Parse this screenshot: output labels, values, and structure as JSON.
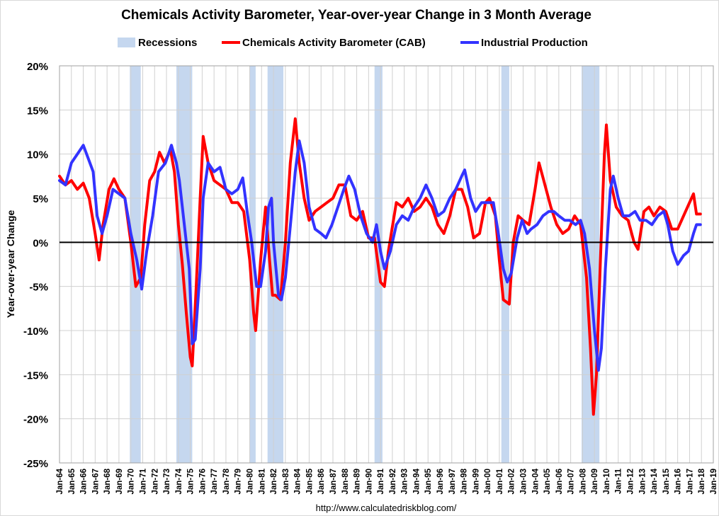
{
  "chart_data": {
    "type": "line",
    "title": "Chemicals Activity Barometer, Year-over-year Change in 3 Month Average",
    "ylabel": "Year-over-year Change",
    "xlabel": "",
    "source": "http://www.calculatedriskblog.com/",
    "ylim": [
      -25,
      20
    ],
    "yticks": [
      20,
      15,
      10,
      5,
      0,
      -5,
      -10,
      -15,
      -20,
      -25
    ],
    "ytick_labels": [
      "20%",
      "15%",
      "10%",
      "5%",
      "0%",
      "-5%",
      "-10%",
      "-15%",
      "-20%",
      "-25%"
    ],
    "xlim": [
      "1964-01",
      "2019-01"
    ],
    "xtick_labels": [
      "Jan-64",
      "Jan-65",
      "Jan-66",
      "Jan-67",
      "Jan-68",
      "Jan-69",
      "Jan-70",
      "Jan-71",
      "Jan-72",
      "Jan-73",
      "Jan-74",
      "Jan-75",
      "Jan-76",
      "Jan-77",
      "Jan-78",
      "Jan-79",
      "Jan-80",
      "Jan-81",
      "Jan-82",
      "Jan-83",
      "Jan-84",
      "Jan-85",
      "Jan-86",
      "Jan-87",
      "Jan-88",
      "Jan-89",
      "Jan-90",
      "Jan-91",
      "Jan-92",
      "Jan-93",
      "Jan-94",
      "Jan-95",
      "Jan-96",
      "Jan-97",
      "Jan-98",
      "Jan-99",
      "Jan-00",
      "Jan-01",
      "Jan-02",
      "Jan-03",
      "Jan-04",
      "Jan-05",
      "Jan-06",
      "Jan-07",
      "Jan-08",
      "Jan-09",
      "Jan-10",
      "Jan-11",
      "Jan-12",
      "Jan-13",
      "Jan-14",
      "Jan-15",
      "Jan-16",
      "Jan-17",
      "Jan-18",
      "Jan-19"
    ],
    "grid": true,
    "legend_placement": "top",
    "recessions": {
      "name": "Recessions",
      "color": "#c5d7ef",
      "periods": [
        [
          "1969-12",
          "1970-11"
        ],
        [
          "1973-11",
          "1975-03"
        ],
        [
          "1980-01",
          "1980-07"
        ],
        [
          "1981-07",
          "1982-11"
        ],
        [
          "1990-07",
          "1991-03"
        ],
        [
          "2001-03",
          "2001-11"
        ],
        [
          "2007-12",
          "2009-06"
        ]
      ]
    },
    "series": [
      {
        "name": "Chemicals Activity Barometer (CAB)",
        "color": "#ff0000",
        "points": [
          [
            "1964-01",
            7.5
          ],
          [
            "1964-07",
            6.5
          ],
          [
            "1965-01",
            7
          ],
          [
            "1965-07",
            6
          ],
          [
            "1966-01",
            6.7
          ],
          [
            "1966-07",
            5
          ],
          [
            "1967-01",
            1
          ],
          [
            "1967-05",
            -2
          ],
          [
            "1967-09",
            2
          ],
          [
            "1968-03",
            6
          ],
          [
            "1968-08",
            7.2
          ],
          [
            "1969-01",
            6
          ],
          [
            "1969-07",
            5
          ],
          [
            "1970-01",
            0
          ],
          [
            "1970-06",
            -5
          ],
          [
            "1970-11",
            -4
          ],
          [
            "1971-03",
            2
          ],
          [
            "1971-08",
            7
          ],
          [
            "1972-01",
            8
          ],
          [
            "1972-06",
            10.2
          ],
          [
            "1972-11",
            9
          ],
          [
            "1973-05",
            10.5
          ],
          [
            "1973-09",
            8
          ],
          [
            "1974-01",
            2
          ],
          [
            "1974-05",
            -2.5
          ],
          [
            "1974-09",
            -8
          ],
          [
            "1975-01",
            -13
          ],
          [
            "1975-03",
            -14
          ],
          [
            "1975-07",
            -5
          ],
          [
            "1975-11",
            5
          ],
          [
            "1976-02",
            12
          ],
          [
            "1976-07",
            9
          ],
          [
            "1977-01",
            7
          ],
          [
            "1977-07",
            6.5
          ],
          [
            "1978-01",
            6
          ],
          [
            "1978-07",
            4.5
          ],
          [
            "1979-01",
            4.5
          ],
          [
            "1979-07",
            3.5
          ],
          [
            "1980-01",
            -2
          ],
          [
            "1980-05",
            -8
          ],
          [
            "1980-07",
            -10
          ],
          [
            "1980-12",
            -2
          ],
          [
            "1981-05",
            4
          ],
          [
            "1981-09",
            -2
          ],
          [
            "1981-12",
            -6
          ],
          [
            "1982-03",
            -6
          ],
          [
            "1982-08",
            -6.5
          ],
          [
            "1983-01",
            0
          ],
          [
            "1983-06",
            9
          ],
          [
            "1983-11",
            14
          ],
          [
            "1984-03",
            9
          ],
          [
            "1984-08",
            5
          ],
          [
            "1985-01",
            2.5
          ],
          [
            "1985-07",
            3.5
          ],
          [
            "1986-01",
            4
          ],
          [
            "1986-07",
            4.5
          ],
          [
            "1987-01",
            5
          ],
          [
            "1987-07",
            6.5
          ],
          [
            "1988-01",
            6.5
          ],
          [
            "1988-07",
            3
          ],
          [
            "1989-01",
            2.5
          ],
          [
            "1989-07",
            3.5
          ],
          [
            "1990-01",
            0.5
          ],
          [
            "1990-07",
            0.5
          ],
          [
            "1991-01",
            -4.5
          ],
          [
            "1991-05",
            -5
          ],
          [
            "1991-09",
            -1
          ],
          [
            "1992-05",
            4.5
          ],
          [
            "1992-11",
            4
          ],
          [
            "1993-05",
            5
          ],
          [
            "1993-11",
            3.5
          ],
          [
            "1994-05",
            4
          ],
          [
            "1994-11",
            5
          ],
          [
            "1995-05",
            4
          ],
          [
            "1995-11",
            2
          ],
          [
            "1996-05",
            1
          ],
          [
            "1996-11",
            3
          ],
          [
            "1997-05",
            6
          ],
          [
            "1997-11",
            6
          ],
          [
            "1998-05",
            4
          ],
          [
            "1998-11",
            0.5
          ],
          [
            "1999-05",
            1
          ],
          [
            "1999-11",
            4.5
          ],
          [
            "2000-03",
            5
          ],
          [
            "2000-09",
            3
          ],
          [
            "2001-01",
            -2
          ],
          [
            "2001-05",
            -6.5
          ],
          [
            "2001-11",
            -7
          ],
          [
            "2002-03",
            0
          ],
          [
            "2002-08",
            3
          ],
          [
            "2003-01",
            2.5
          ],
          [
            "2003-07",
            2
          ],
          [
            "2004-01",
            6
          ],
          [
            "2004-05",
            9
          ],
          [
            "2004-11",
            6.5
          ],
          [
            "2005-05",
            4
          ],
          [
            "2005-11",
            2
          ],
          [
            "2006-05",
            1
          ],
          [
            "2006-11",
            1.5
          ],
          [
            "2007-05",
            3
          ],
          [
            "2007-11",
            2
          ],
          [
            "2008-05",
            -4
          ],
          [
            "2008-09",
            -12
          ],
          [
            "2008-12",
            -19.5
          ],
          [
            "2009-03",
            -15
          ],
          [
            "2009-07",
            -2
          ],
          [
            "2009-11",
            10
          ],
          [
            "2010-01",
            13.3
          ],
          [
            "2010-05",
            7
          ],
          [
            "2010-11",
            4
          ],
          [
            "2011-05",
            3
          ],
          [
            "2011-11",
            2.5
          ],
          [
            "2012-05",
            0
          ],
          [
            "2012-09",
            -0.8
          ],
          [
            "2013-03",
            3.5
          ],
          [
            "2013-08",
            4
          ],
          [
            "2014-01",
            3
          ],
          [
            "2014-07",
            4
          ],
          [
            "2015-01",
            3.5
          ],
          [
            "2015-07",
            1.5
          ],
          [
            "2016-01",
            1.5
          ],
          [
            "2016-07",
            3
          ],
          [
            "2017-01",
            4.5
          ],
          [
            "2017-05",
            5.5
          ],
          [
            "2017-08",
            3.2
          ],
          [
            "2017-12",
            3.2
          ]
        ]
      },
      {
        "name": "Industrial Production",
        "color": "#3333ff",
        "points": [
          [
            "1964-01",
            7
          ],
          [
            "1964-07",
            6.5
          ],
          [
            "1965-01",
            9
          ],
          [
            "1965-07",
            10
          ],
          [
            "1966-01",
            11
          ],
          [
            "1966-06",
            9.5
          ],
          [
            "1966-11",
            8
          ],
          [
            "1967-03",
            3
          ],
          [
            "1967-08",
            1
          ],
          [
            "1968-01",
            3
          ],
          [
            "1968-07",
            6
          ],
          [
            "1969-01",
            5.5
          ],
          [
            "1969-07",
            5
          ],
          [
            "1970-01",
            1
          ],
          [
            "1970-07",
            -2
          ],
          [
            "1970-12",
            -5.3
          ],
          [
            "1971-05",
            -1
          ],
          [
            "1971-11",
            3
          ],
          [
            "1972-05",
            8
          ],
          [
            "1972-12",
            9
          ],
          [
            "1973-06",
            11
          ],
          [
            "1973-11",
            9
          ],
          [
            "1974-02",
            7
          ],
          [
            "1974-07",
            2
          ],
          [
            "1974-12",
            -3
          ],
          [
            "1975-03",
            -11.5
          ],
          [
            "1975-06",
            -11
          ],
          [
            "1975-11",
            -3
          ],
          [
            "1976-02",
            5
          ],
          [
            "1976-07",
            9
          ],
          [
            "1977-01",
            8
          ],
          [
            "1977-07",
            8.5
          ],
          [
            "1978-01",
            6
          ],
          [
            "1978-07",
            5.5
          ],
          [
            "1979-01",
            6
          ],
          [
            "1979-06",
            7.3
          ],
          [
            "1979-11",
            3
          ],
          [
            "1980-03",
            0
          ],
          [
            "1980-08",
            -5
          ],
          [
            "1980-12",
            -5
          ],
          [
            "1981-05",
            -1
          ],
          [
            "1981-08",
            4
          ],
          [
            "1981-11",
            5
          ],
          [
            "1982-01",
            0
          ],
          [
            "1982-06",
            -6
          ],
          [
            "1982-09",
            -6.5
          ],
          [
            "1983-01",
            -4
          ],
          [
            "1983-07",
            3
          ],
          [
            "1983-11",
            8
          ],
          [
            "1984-03",
            11.5
          ],
          [
            "1984-08",
            9
          ],
          [
            "1985-01",
            4
          ],
          [
            "1985-07",
            1.5
          ],
          [
            "1986-01",
            1
          ],
          [
            "1986-06",
            0.5
          ],
          [
            "1986-12",
            2
          ],
          [
            "1987-06",
            4
          ],
          [
            "1987-12",
            6
          ],
          [
            "1988-05",
            7.5
          ],
          [
            "1988-11",
            6
          ],
          [
            "1989-05",
            3
          ],
          [
            "1989-11",
            1
          ],
          [
            "1990-05",
            0
          ],
          [
            "1990-09",
            2
          ],
          [
            "1991-01",
            -1
          ],
          [
            "1991-05",
            -3
          ],
          [
            "1991-11",
            -1
          ],
          [
            "1992-05",
            2
          ],
          [
            "1992-11",
            3
          ],
          [
            "1993-05",
            2.5
          ],
          [
            "1993-11",
            4
          ],
          [
            "1994-05",
            5
          ],
          [
            "1994-11",
            6.5
          ],
          [
            "1995-05",
            5
          ],
          [
            "1995-11",
            3
          ],
          [
            "1996-05",
            3.5
          ],
          [
            "1996-11",
            5
          ],
          [
            "1997-05",
            6
          ],
          [
            "1997-11",
            7.5
          ],
          [
            "1998-02",
            8.2
          ],
          [
            "1998-08",
            5
          ],
          [
            "1999-01",
            3.5
          ],
          [
            "1999-07",
            4.5
          ],
          [
            "2000-01",
            4.5
          ],
          [
            "2000-07",
            4.5
          ],
          [
            "2000-12",
            1
          ],
          [
            "2001-05",
            -3
          ],
          [
            "2001-09",
            -4.5
          ],
          [
            "2002-01",
            -3.5
          ],
          [
            "2002-07",
            0.5
          ],
          [
            "2002-12",
            2.5
          ],
          [
            "2003-05",
            1
          ],
          [
            "2003-09",
            1.5
          ],
          [
            "2004-03",
            2
          ],
          [
            "2004-09",
            3
          ],
          [
            "2005-03",
            3.5
          ],
          [
            "2005-08",
            3.5
          ],
          [
            "2006-01",
            3
          ],
          [
            "2006-07",
            2.5
          ],
          [
            "2006-12",
            2.5
          ],
          [
            "2007-06",
            2
          ],
          [
            "2007-11",
            2.5
          ],
          [
            "2008-03",
            1
          ],
          [
            "2008-08",
            -3
          ],
          [
            "2009-01",
            -10
          ],
          [
            "2009-05",
            -14.5
          ],
          [
            "2009-08",
            -12
          ],
          [
            "2009-12",
            -3
          ],
          [
            "2010-05",
            6
          ],
          [
            "2010-08",
            7.5
          ],
          [
            "2011-01",
            5
          ],
          [
            "2011-06",
            3
          ],
          [
            "2011-12",
            3
          ],
          [
            "2012-06",
            3.5
          ],
          [
            "2012-11",
            2.5
          ],
          [
            "2013-05",
            2.5
          ],
          [
            "2013-11",
            2
          ],
          [
            "2014-05",
            3
          ],
          [
            "2014-11",
            3.5
          ],
          [
            "2015-03",
            2
          ],
          [
            "2015-08",
            -1
          ],
          [
            "2016-01",
            -2.5
          ],
          [
            "2016-07",
            -1.5
          ],
          [
            "2016-12",
            -1
          ],
          [
            "2017-05",
            1
          ],
          [
            "2017-08",
            2
          ],
          [
            "2017-12",
            2
          ]
        ]
      }
    ]
  }
}
